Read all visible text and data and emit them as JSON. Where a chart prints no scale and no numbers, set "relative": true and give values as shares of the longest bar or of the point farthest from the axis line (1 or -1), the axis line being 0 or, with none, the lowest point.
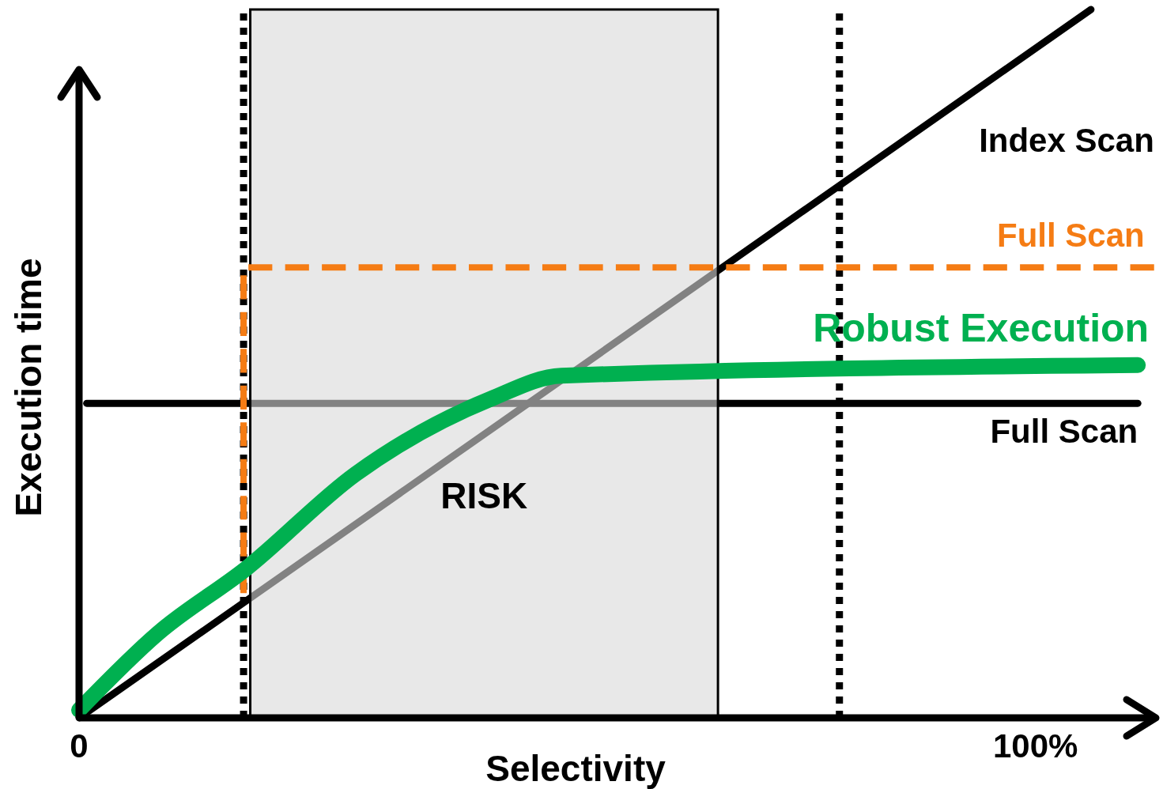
{
  "chart_data": {
    "type": "line",
    "relative": true,
    "xlabel": "Selectivity",
    "ylabel": "Execution time",
    "xlim": [
      0,
      113
    ],
    "xticks": [
      {
        "value": 0,
        "label": "0"
      },
      {
        "value": 100,
        "label": "100%"
      }
    ],
    "series": [
      {
        "name": "Index Scan",
        "color": "#000000",
        "x": [
          0,
          105.8
        ],
        "values": [
          0,
          1
        ]
      },
      {
        "name": "Full Scan",
        "color": "#000000",
        "x": [
          0.8,
          110.7
        ],
        "values": [
          0.444,
          0.444
        ]
      },
      {
        "name": "Full Scan",
        "color": "#f57c14",
        "line_style": "dashed",
        "x": [
          17.2,
          17.2,
          112.4
        ],
        "values": [
          0.176,
          0.636,
          0.636
        ]
      },
      {
        "name": "Robust Execution",
        "color": "#00b050",
        "x": [
          0,
          8.3,
          17.4,
          28.9,
          43,
          50.4,
          110.7
        ],
        "values": [
          0.011,
          0.12,
          0.21,
          0.344,
          0.45,
          0.483,
          0.498
        ]
      }
    ],
    "bands": [
      {
        "axis": "x",
        "from": 17.9,
        "to": 66.8,
        "label": "RISK",
        "color": "#d9d9d9"
      }
    ],
    "ref_lines": [
      {
        "axis": "x",
        "value": 17.2,
        "line_style": "dotted",
        "color": "#000000"
      },
      {
        "axis": "x",
        "value": 79.5,
        "line_style": "dotted",
        "color": "#000000"
      }
    ],
    "legend": false
  }
}
